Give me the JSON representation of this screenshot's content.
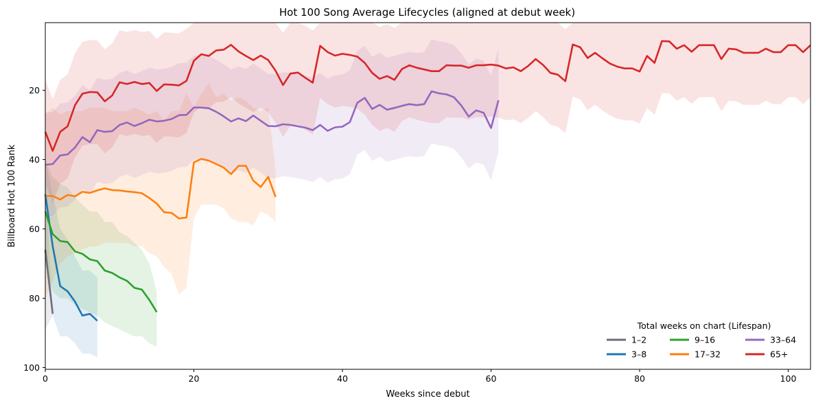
{
  "chart_data": {
    "type": "line",
    "title": "Hot 100 Song Average Lifecycles (aligned at debut week)",
    "xlabel": "Weeks since debut",
    "ylabel": "Billboard Hot 100 Rank",
    "xlim": [
      0,
      103
    ],
    "ylim": [
      100.5,
      0.5
    ],
    "y_inverted": true,
    "xticks": [
      "0",
      "20",
      "40",
      "60",
      "80",
      "100"
    ],
    "yticks": [
      "20",
      "40",
      "60",
      "80",
      "100"
    ],
    "grid": false,
    "legend": {
      "title": "Total weeks on chart (Lifespan)",
      "placement": "lower-right",
      "columns": 3
    },
    "series": [
      {
        "name": "1–2",
        "color": "#6b6e7a",
        "x": [
          0,
          1
        ],
        "y": [
          66,
          84.5
        ],
        "lower": [
          45,
          84
        ],
        "upper": [
          89,
          85
        ]
      },
      {
        "name": "3–8",
        "color": "#1f77b4",
        "x": [
          0,
          1,
          2,
          3,
          4,
          5,
          6,
          7
        ],
        "y": [
          50,
          65,
          76.5,
          78,
          81,
          85,
          84.5,
          86.5
        ],
        "lower": [
          40,
          50,
          60,
          63,
          68,
          72,
          72,
          74
        ],
        "upper": [
          65,
          85,
          91,
          91,
          93,
          96,
          96,
          97
        ]
      },
      {
        "name": "9–16",
        "color": "#2ca02c",
        "x": [
          0,
          1,
          2,
          3,
          4,
          5,
          6,
          7,
          8,
          9,
          10,
          11,
          12,
          13,
          14,
          15
        ],
        "y": [
          55,
          61.5,
          63.5,
          63.8,
          66.5,
          67.2,
          68.8,
          69.3,
          72,
          72.7,
          74,
          75,
          77,
          77.5,
          80.5,
          84
        ],
        "lower": [
          40,
          45,
          47,
          48,
          51,
          53,
          55,
          55,
          58,
          58,
          61,
          62,
          64,
          66,
          70,
          78
        ],
        "upper": [
          70,
          78,
          80,
          80,
          82,
          83,
          84,
          85,
          87,
          88,
          89,
          90,
          91,
          91,
          93,
          94
        ]
      },
      {
        "name": "17–32",
        "color": "#ff7f0e",
        "x": [
          0,
          1,
          2,
          3,
          4,
          5,
          6,
          7,
          8,
          9,
          10,
          11,
          12,
          13,
          14,
          15,
          16,
          17,
          18,
          19,
          20,
          21,
          22,
          23,
          24,
          25,
          26,
          27,
          28,
          29,
          30,
          31
        ],
        "y": [
          50.5,
          50.5,
          51.5,
          50.2,
          50.6,
          49.3,
          49.6,
          48.9,
          48.3,
          48.8,
          48.9,
          49.2,
          49.4,
          49.7,
          51.1,
          52.7,
          55.2,
          55.4,
          57,
          56.7,
          40.8,
          39.8,
          40.3,
          41.3,
          42.3,
          44.2,
          41.8,
          41.8,
          46.1,
          47.9,
          45,
          50.8
        ],
        "lower": [
          27,
          25,
          27,
          26,
          26,
          26,
          25,
          25,
          25,
          26,
          26,
          26,
          25,
          26,
          27,
          26,
          29,
          26,
          26,
          21,
          25,
          21,
          18,
          22,
          21,
          23,
          22,
          23,
          25,
          26,
          25,
          43
        ],
        "upper": [
          80,
          75,
          70,
          68,
          67,
          66,
          65,
          65,
          64,
          64,
          64,
          64,
          65,
          65,
          67,
          68,
          71,
          73,
          79,
          77,
          57,
          53,
          53,
          53,
          54,
          57,
          58,
          58,
          59,
          55,
          56,
          58
        ]
      },
      {
        "name": "33–64",
        "color": "#9467bd",
        "x": [
          0,
          1,
          2,
          3,
          4,
          5,
          6,
          7,
          8,
          9,
          10,
          11,
          12,
          13,
          14,
          15,
          16,
          17,
          18,
          19,
          20,
          21,
          22,
          23,
          24,
          25,
          26,
          27,
          28,
          29,
          30,
          31,
          32,
          33,
          34,
          35,
          36,
          37,
          38,
          39,
          40,
          41,
          42,
          43,
          44,
          45,
          46,
          47,
          48,
          49,
          50,
          51,
          52,
          53,
          54,
          55,
          56,
          57,
          58,
          59,
          60,
          61
        ],
        "y": [
          41.5,
          41.3,
          38.8,
          38.5,
          36.5,
          33.5,
          35,
          31.5,
          32,
          31.8,
          30,
          29.3,
          30.3,
          29.5,
          28.5,
          29,
          28.8,
          28.3,
          27.2,
          27.1,
          25,
          25,
          25.2,
          26.2,
          27.5,
          29,
          28.1,
          28.9,
          27.3,
          28.8,
          30.3,
          30.4,
          29.8,
          30,
          30.4,
          30.8,
          31.5,
          30,
          31.7,
          30.7,
          30.5,
          29.2,
          23.6,
          22.2,
          25.4,
          24.2,
          25.6,
          25.1,
          24.5,
          24,
          24.3,
          24,
          20.3,
          20.9,
          21.2,
          22,
          24.4,
          27.6,
          25.8,
          26.5,
          30.9,
          22.9
        ]
      },
      {
        "name": "65+",
        "color": "#d62728",
        "x": [
          0,
          1,
          2,
          3,
          4,
          5,
          6,
          7,
          8,
          9,
          10,
          11,
          12,
          13,
          14,
          15,
          16,
          17,
          18,
          19,
          20,
          21,
          22,
          23,
          24,
          25,
          26,
          27,
          28,
          29,
          30,
          31,
          32,
          33,
          34,
          35,
          36,
          37,
          38,
          39,
          40,
          41,
          42,
          43,
          44,
          45,
          46,
          47,
          48,
          49,
          50,
          51,
          52,
          53,
          54,
          55,
          56,
          57,
          58,
          59,
          60,
          61,
          62,
          63,
          64,
          65,
          66,
          67,
          68,
          69,
          70,
          71,
          72,
          73,
          74,
          75,
          76,
          77,
          78,
          79,
          80,
          81,
          82,
          83,
          84,
          85,
          86,
          87,
          88,
          89,
          90,
          91,
          92,
          93,
          94,
          95,
          96,
          97,
          98,
          99,
          100,
          101,
          102,
          103
        ],
        "y": [
          32,
          37.5,
          32,
          30.4,
          24.3,
          21,
          20.5,
          20.6,
          23.2,
          21.5,
          17.7,
          18.2,
          17.6,
          18.2,
          17.9,
          20.2,
          18.3,
          18.4,
          18.6,
          17.3,
          11.5,
          9.6,
          10.1,
          8.5,
          8.3,
          6.9,
          8.8,
          10.1,
          11.3,
          10,
          11.3,
          14.4,
          18.5,
          15.2,
          14.9,
          16.4,
          17.8,
          7.2,
          9,
          10,
          9.5,
          9.8,
          10.3,
          12.1,
          15,
          16.7,
          15.9,
          17,
          13.9,
          12.8,
          13.5,
          14,
          14.5,
          14.5,
          12.8,
          12.9,
          12.9,
          13.5,
          12.8,
          12.8,
          12.6,
          12.9,
          13.7,
          13.4,
          14.5,
          13,
          11,
          12.7,
          15,
          15.5,
          17.4,
          6.8,
          7.6,
          10.7,
          9.2,
          10.8,
          12.3,
          13.2,
          13.7,
          13.7,
          14.6,
          10.1,
          12.1,
          5.8,
          5.9,
          8,
          7,
          8.9,
          7,
          7,
          7,
          11,
          8,
          8.2,
          9.2,
          9.2,
          9.2,
          8,
          9,
          9,
          7,
          7,
          9,
          7
        ]
      }
    ]
  }
}
